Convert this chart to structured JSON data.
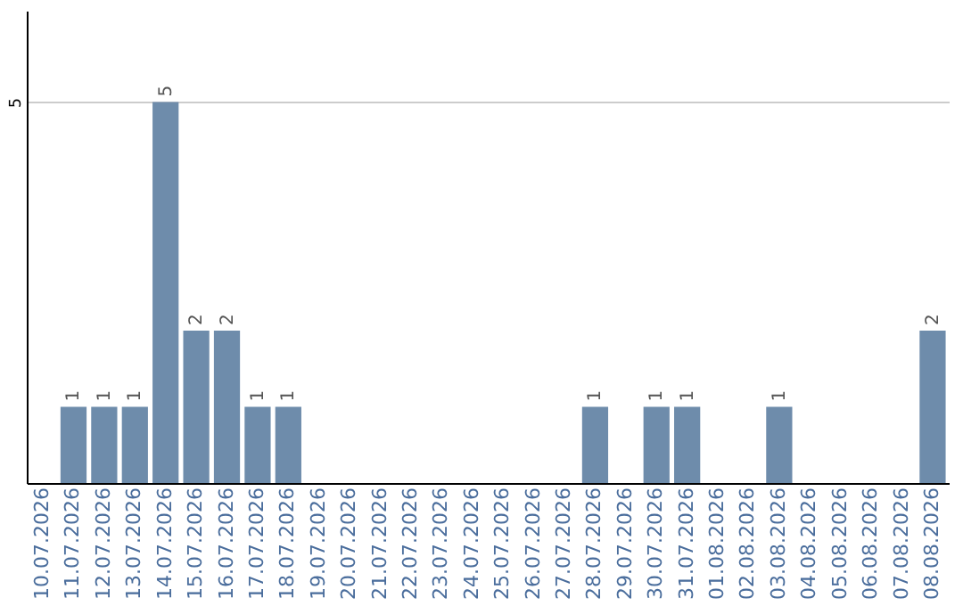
{
  "chart_data": {
    "type": "bar",
    "categories": [
      "10.07.2026",
      "11.07.2026",
      "12.07.2026",
      "13.07.2026",
      "14.07.2026",
      "15.07.2026",
      "16.07.2026",
      "17.07.2026",
      "18.07.2026",
      "19.07.2026",
      "20.07.2026",
      "21.07.2026",
      "22.07.2026",
      "23.07.2026",
      "24.07.2026",
      "25.07.2026",
      "26.07.2026",
      "27.07.2026",
      "28.07.2026",
      "29.07.2026",
      "30.07.2026",
      "31.07.2026",
      "01.08.2026",
      "02.08.2026",
      "03.08.2026",
      "04.08.2026",
      "05.08.2026",
      "06.08.2026",
      "07.08.2026",
      "08.08.2026"
    ],
    "values": [
      0,
      1,
      1,
      1,
      5,
      2,
      2,
      1,
      1,
      0,
      0,
      0,
      0,
      0,
      0,
      0,
      0,
      0,
      1,
      0,
      1,
      1,
      0,
      0,
      1,
      0,
      0,
      0,
      0,
      2
    ],
    "value_labels": [
      null,
      "1",
      "1",
      "1",
      "5",
      "2",
      "2",
      "1",
      "1",
      null,
      null,
      null,
      null,
      null,
      null,
      null,
      null,
      null,
      "1",
      null,
      "1",
      "1",
      null,
      null,
      "1",
      null,
      null,
      null,
      null,
      "2"
    ],
    "color": "#6e8cab",
    "ylim": [
      0,
      6.2
    ],
    "yticks": [
      5
    ],
    "grid": "y"
  }
}
